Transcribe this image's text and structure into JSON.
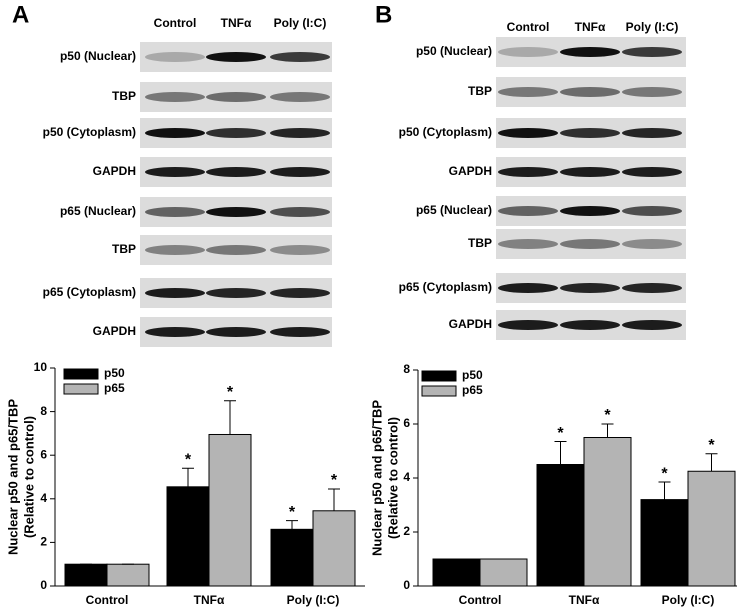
{
  "panel_labels": [
    "A",
    "B"
  ],
  "blots": [
    {
      "columns": [
        "Control",
        "TNFα",
        "Poly (I:C)"
      ],
      "rows": [
        "p50 (Nuclear)",
        "TBP",
        "p50 (Cytoplasm)",
        "GAPDH",
        "p65 (Nuclear)",
        "TBP",
        "p65 (Cytoplasm)",
        "GAPDH"
      ]
    },
    {
      "columns": [
        "Control",
        "TNFα",
        "Poly (I:C)"
      ],
      "rows": [
        "p50 (Nuclear)",
        "TBP",
        "p50 (Cytoplasm)",
        "GAPDH",
        "p65 (Nuclear)",
        "TBP",
        "p65 (Cytoplasm)",
        "GAPDH"
      ]
    }
  ],
  "chart_data": [
    {
      "type": "bar",
      "ylabel": [
        "Nuclear p50 and p65/TBP",
        "(Relative to control)"
      ],
      "categories": [
        "Control",
        "TNFα",
        "Poly (I:C)"
      ],
      "series": [
        {
          "name": "p50",
          "color": "#000000",
          "values": [
            1,
            4.55,
            2.6
          ],
          "errors": [
            0,
            0.85,
            0.4
          ],
          "significance": [
            null,
            "*",
            "*"
          ]
        },
        {
          "name": "p65",
          "color": "#b4b4b4",
          "values": [
            1,
            6.95,
            3.45
          ],
          "errors": [
            0,
            1.55,
            1.0
          ],
          "significance": [
            null,
            "*",
            "*"
          ]
        }
      ],
      "ylim": [
        0,
        10
      ],
      "yticks": [
        0,
        2,
        4,
        6,
        8,
        10
      ],
      "legend": "upper-left"
    },
    {
      "type": "bar",
      "ylabel": [
        "Nuclear p50 and p65/TBP",
        "(Relative to control)"
      ],
      "categories": [
        "Control",
        "TNFα",
        "Poly (I:C)"
      ],
      "series": [
        {
          "name": "p50",
          "color": "#000000",
          "values": [
            1,
            4.5,
            3.2
          ],
          "errors": [
            0,
            0.85,
            0.65
          ],
          "significance": [
            null,
            "*",
            "*"
          ]
        },
        {
          "name": "p65",
          "color": "#b4b4b4",
          "values": [
            1,
            5.5,
            4.25
          ],
          "errors": [
            0,
            0.5,
            0.65
          ],
          "significance": [
            null,
            "*",
            "*"
          ]
        }
      ],
      "ylim": [
        0,
        8
      ],
      "yticks": [
        0,
        2,
        4,
        6,
        8
      ],
      "legend": "upper-left"
    }
  ]
}
